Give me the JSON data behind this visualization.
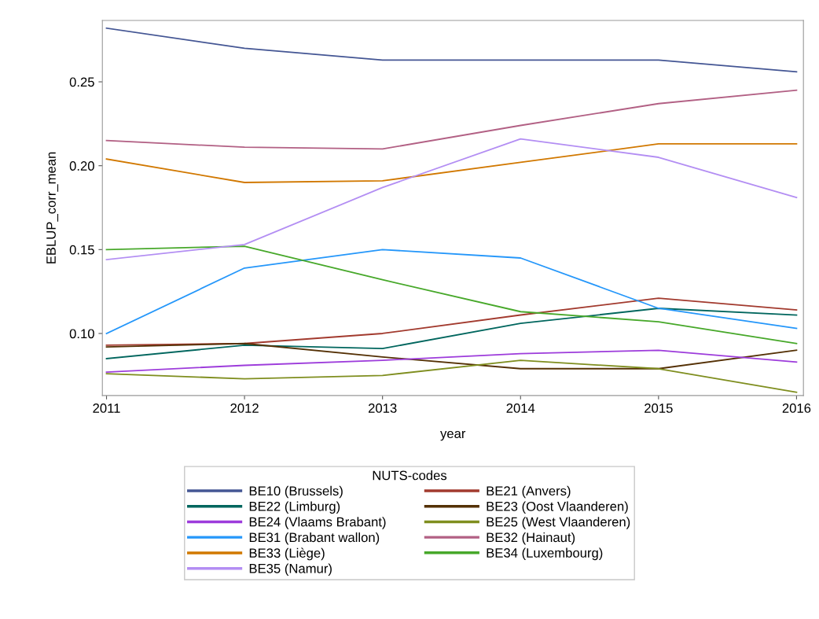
{
  "chart_data": {
    "type": "line",
    "xlabel": "year",
    "ylabel": "EBLUP_corr_mean",
    "legend_title": "NUTS-codes",
    "legend": "bottom",
    "grid": false,
    "marker": "none",
    "line_style": "solid",
    "x": [
      2011,
      2012,
      2013,
      2014,
      2015,
      2016
    ],
    "xlim": [
      2010.97,
      2016.05
    ],
    "xticks": [
      2011,
      2012,
      2013,
      2014,
      2015,
      2016
    ],
    "ylim": [
      0.063,
      0.2866
    ],
    "yticks": [
      {
        "value": 0.1,
        "label": "0.10"
      },
      {
        "value": 0.15,
        "label": "0.15"
      },
      {
        "value": 0.2,
        "label": "0.20"
      },
      {
        "value": 0.25,
        "label": "0.25"
      }
    ],
    "series": [
      {
        "name": "BE10 (Brussels)",
        "color": "#445694",
        "values": [
          0.282,
          0.27,
          0.263,
          0.263,
          0.263,
          0.256
        ]
      },
      {
        "name": "BE21 (Anvers)",
        "color": "#a23a2e",
        "values": [
          0.093,
          0.094,
          0.1,
          0.111,
          0.121,
          0.114
        ]
      },
      {
        "name": "BE22 (Limburg)",
        "color": "#01665e",
        "values": [
          0.085,
          0.093,
          0.091,
          0.106,
          0.115,
          0.111
        ]
      },
      {
        "name": "BE23 (Oost Vlaanderen)",
        "color": "#543005",
        "values": [
          0.092,
          0.094,
          0.086,
          0.079,
          0.079,
          0.09
        ]
      },
      {
        "name": "BE24 (Vlaams Brabant)",
        "color": "#9d3cdb",
        "values": [
          0.077,
          0.081,
          0.084,
          0.088,
          0.09,
          0.083
        ]
      },
      {
        "name": "BE25 (West Vlaanderen)",
        "color": "#7f8e1f",
        "values": [
          0.076,
          0.073,
          0.075,
          0.084,
          0.079,
          0.065
        ]
      },
      {
        "name": "BE31 (Brabant wallon)",
        "color": "#2597fa",
        "values": [
          0.1,
          0.139,
          0.15,
          0.145,
          0.115,
          0.103
        ]
      },
      {
        "name": "BE32 (Hainaut)",
        "color": "#b26084",
        "values": [
          0.215,
          0.211,
          0.21,
          0.224,
          0.237,
          0.245
        ]
      },
      {
        "name": "BE33 (Liège)",
        "color": "#d17800",
        "values": [
          0.204,
          0.19,
          0.191,
          0.202,
          0.213,
          0.213
        ]
      },
      {
        "name": "BE34 (Luxembourg)",
        "color": "#47a82a",
        "values": [
          0.15,
          0.152,
          0.132,
          0.113,
          0.107,
          0.094
        ]
      },
      {
        "name": "BE35 (Namur)",
        "color": "#b38ef3",
        "values": [
          0.144,
          0.153,
          0.187,
          0.216,
          0.205,
          0.181
        ]
      }
    ]
  }
}
